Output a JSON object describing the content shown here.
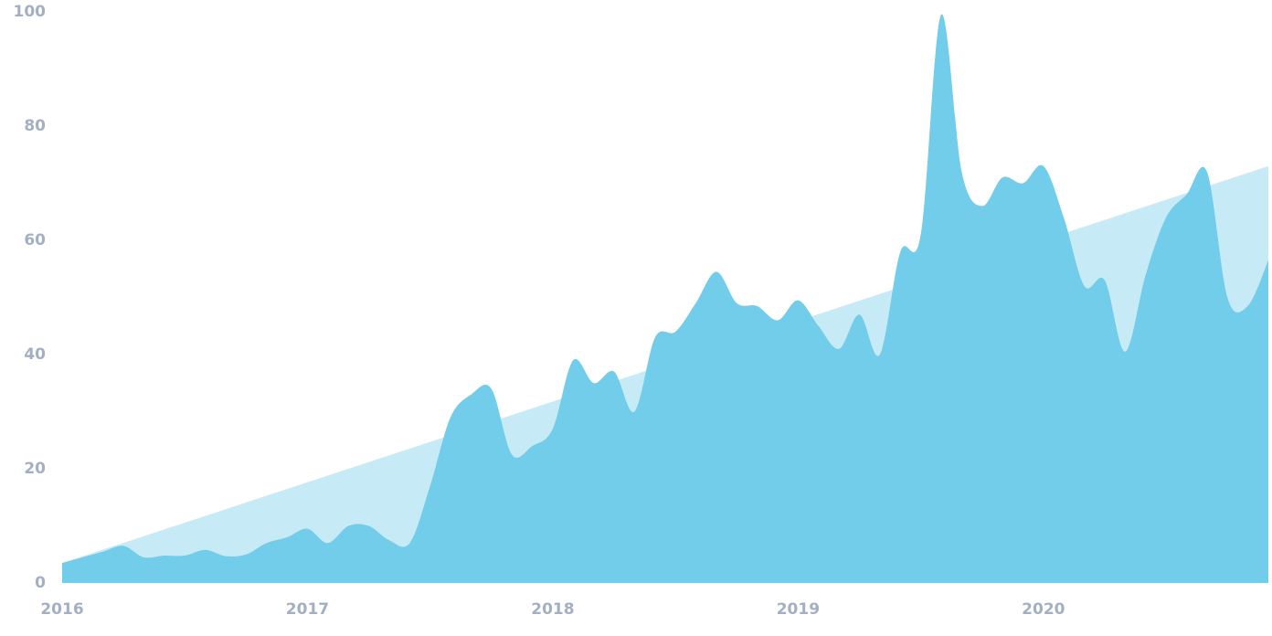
{
  "chart_data": {
    "type": "area",
    "xlim": [
      2016,
      2020.917
    ],
    "xticks": [
      2016,
      2017,
      2018,
      2019,
      2020
    ],
    "ylim": [
      0,
      100
    ],
    "yticks": [
      0,
      20,
      40,
      60,
      80,
      100
    ],
    "grid": false,
    "series": [
      {
        "color": "#c6eaf6",
        "x": [
          2016,
          2020.917
        ],
        "values": [
          3.5,
          73
        ]
      },
      {
        "color": "#72cdea",
        "x": [
          2016,
          2016.083,
          2016.167,
          2016.25,
          2016.333,
          2016.417,
          2016.5,
          2016.583,
          2016.667,
          2016.75,
          2016.833,
          2016.917,
          2017,
          2017.083,
          2017.167,
          2017.25,
          2017.333,
          2017.417,
          2017.5,
          2017.583,
          2017.667,
          2017.75,
          2017.833,
          2017.917,
          2018,
          2018.083,
          2018.167,
          2018.25,
          2018.333,
          2018.417,
          2018.5,
          2018.583,
          2018.667,
          2018.75,
          2018.833,
          2018.917,
          2019,
          2019.083,
          2019.167,
          2019.25,
          2019.333,
          2019.417,
          2019.5,
          2019.583,
          2019.667,
          2019.75,
          2019.833,
          2019.917,
          2020,
          2020.083,
          2020.167,
          2020.25,
          2020.333,
          2020.417,
          2020.5,
          2020.583,
          2020.667,
          2020.75,
          2020.833,
          2020.917
        ],
        "values": [
          3.5,
          4.5,
          5.5,
          6.5,
          4.5,
          4.8,
          4.8,
          5.8,
          4.7,
          5,
          7,
          8,
          9.5,
          7,
          10,
          10,
          7.5,
          7,
          17,
          29,
          33,
          34,
          22.5,
          24,
          27,
          39,
          35,
          37,
          30,
          43,
          44,
          49,
          54.5,
          49,
          48.5,
          46,
          49.5,
          45,
          41,
          47,
          40,
          58,
          61,
          99.5,
          72,
          66,
          71,
          70,
          73,
          64,
          52,
          53,
          40.5,
          54,
          64,
          68,
          72,
          50,
          48.5,
          56.5
        ]
      }
    ]
  }
}
